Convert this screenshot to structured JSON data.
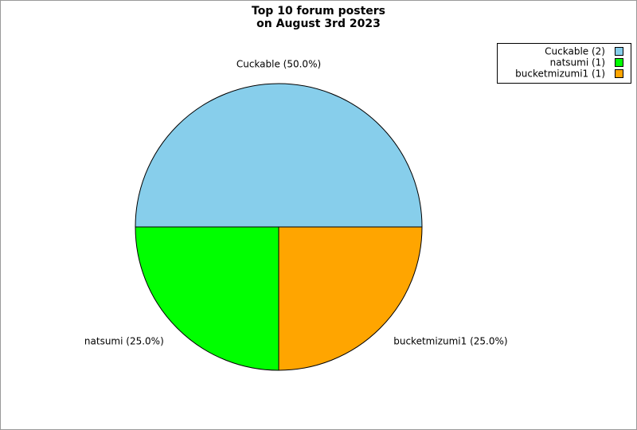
{
  "chart_data": {
    "type": "pie",
    "title": "Top 10 forum posters",
    "subtitle": "on August 3rd 2023",
    "categories": [
      "Cuckable (2)",
      "natsumi (1)",
      "bucketmizumi1 (1)"
    ],
    "values": [
      50,
      25,
      25
    ],
    "value_labels": [
      "Cuckable (50.0%)",
      "natsumi (25.0%)",
      "bucketmizumi1 (25.0%)"
    ],
    "colors": [
      "#87ceeb",
      "#00ff00",
      "#ffa500"
    ],
    "legend": "top-right"
  }
}
